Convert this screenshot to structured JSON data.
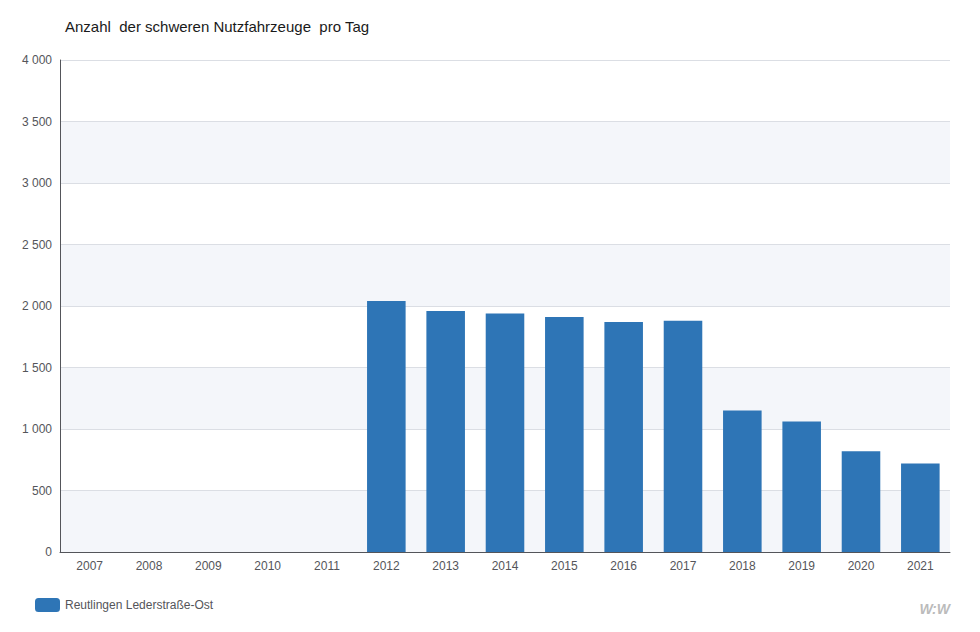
{
  "chart_data": {
    "type": "bar",
    "title": "Anzahl  der schweren Nutzfahrzeuge  pro Tag",
    "categories": [
      "2007",
      "2008",
      "2009",
      "2010",
      "2011",
      "2012",
      "2013",
      "2014",
      "2015",
      "2016",
      "2017",
      "2018",
      "2019",
      "2020",
      "2021"
    ],
    "series": [
      {
        "name": "Reutlingen Lederstraße-Ost",
        "color": "#2E75B6",
        "values": [
          null,
          null,
          null,
          null,
          null,
          2040,
          1960,
          1940,
          1910,
          1870,
          1880,
          1150,
          1060,
          820,
          720
        ]
      }
    ],
    "ylim": [
      0,
      4000
    ],
    "yticks": [
      0,
      500,
      {
        "value": 1000,
        "label": "1 000"
      },
      {
        "value": 1500,
        "label": "1 500"
      },
      {
        "value": 2000,
        "label": "2 000"
      },
      {
        "value": 2500,
        "label": "2 500"
      },
      {
        "value": 3000,
        "label": "3 000"
      },
      {
        "value": 3500,
        "label": "3 500"
      },
      {
        "value": 4000,
        "label": "4 000"
      }
    ],
    "grid": true,
    "legend": "bottom",
    "annotations": [
      {
        "text": "W:W"
      }
    ]
  }
}
